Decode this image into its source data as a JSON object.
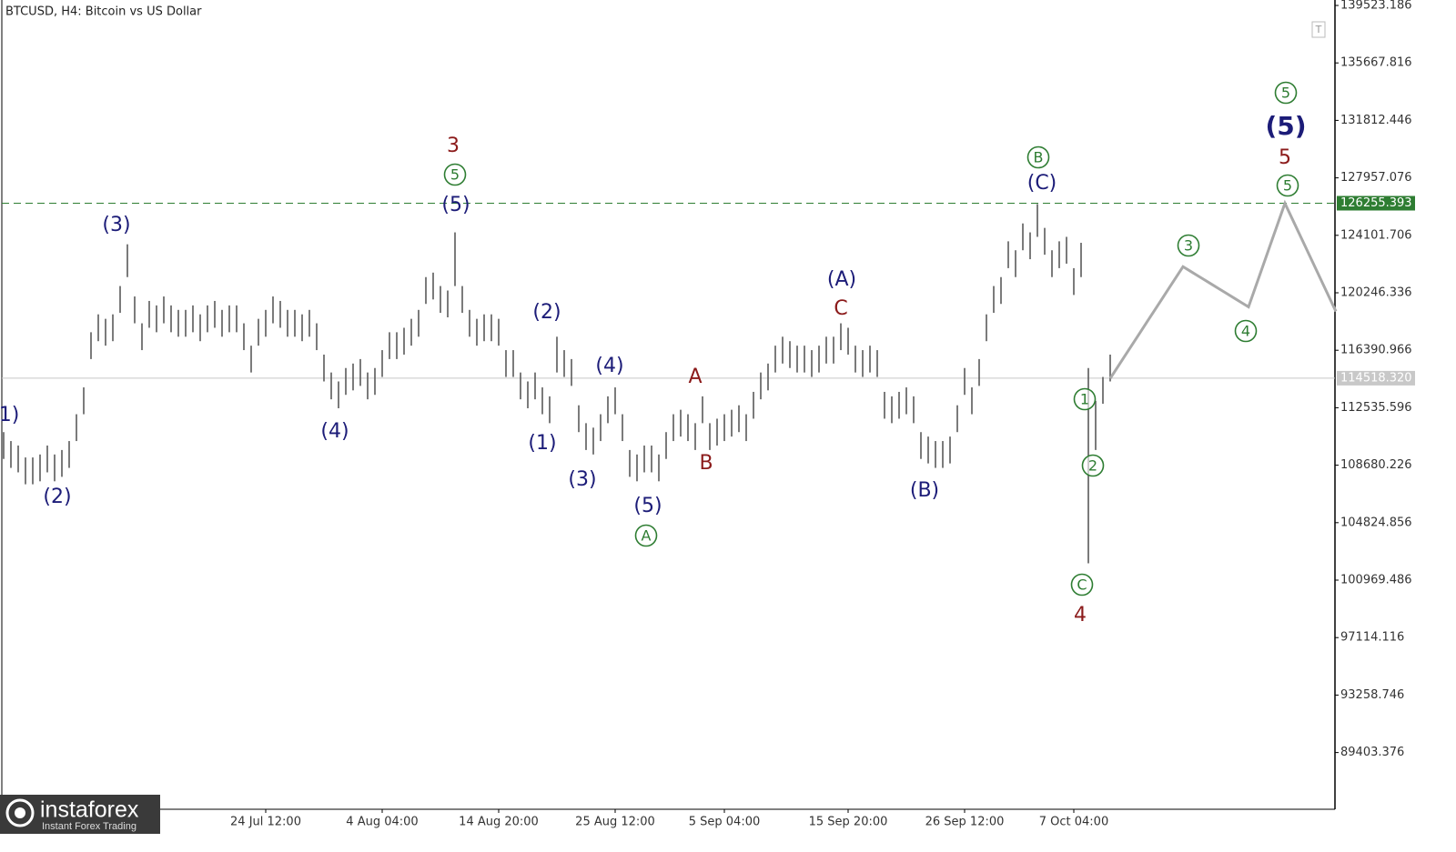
{
  "chart_data": {
    "type": "range_bar",
    "title": "BTCUSD, H4:  Bitcoin vs US Dollar",
    "logo": {
      "name": "instaforex",
      "tagline": "Instant Forex Trading"
    },
    "ylim": [
      85598,
      139889
    ],
    "yticks": [
      139523.186,
      135667.816,
      131812.446,
      127957.076,
      124101.706,
      120246.336,
      116390.966,
      112535.596,
      108680.226,
      104824.856,
      100969.486,
      97114.116,
      93258.746,
      89403.376
    ],
    "grid": false,
    "categories": [
      null,
      null,
      null,
      null,
      null,
      null,
      null,
      null,
      null,
      null,
      null,
      null,
      null,
      null,
      null,
      null,
      null,
      null,
      null,
      null,
      null,
      null,
      null,
      null,
      null,
      null,
      null,
      null,
      null,
      null,
      null,
      null,
      null,
      null,
      null,
      null,
      "24 Jul 12:00",
      null,
      null,
      null,
      null,
      null,
      null,
      null,
      null,
      null,
      null,
      null,
      null,
      null,
      null,
      null,
      "4 Aug 04:00",
      null,
      null,
      null,
      null,
      null,
      null,
      null,
      null,
      null,
      null,
      null,
      null,
      null,
      null,
      null,
      "14 Aug 20:00",
      null,
      null,
      null,
      null,
      null,
      null,
      null,
      null,
      null,
      null,
      null,
      null,
      null,
      null,
      null,
      "25 Aug 12:00",
      null,
      null,
      null,
      null,
      null,
      null,
      null,
      null,
      null,
      null,
      null,
      null,
      null,
      null,
      "5 Sep 04:00",
      null,
      null,
      null,
      null,
      null,
      null,
      null,
      null,
      null,
      null,
      null,
      null,
      null,
      null,
      null,
      null,
      "15 Sep 20:00",
      null,
      null,
      null,
      null,
      null,
      null,
      null,
      null,
      null,
      null,
      null,
      null,
      null,
      null,
      null,
      "26 Sep 12:00",
      null,
      null,
      null,
      null,
      null,
      null,
      null,
      null,
      null,
      null,
      null,
      null,
      null,
      null,
      "7 Oct 04:00",
      null,
      null,
      null,
      null,
      null,
      null,
      null,
      null,
      null,
      null,
      null,
      null,
      null,
      null,
      null,
      null,
      null,
      null,
      null,
      null,
      null,
      null,
      null,
      null,
      null,
      null,
      null,
      null,
      null,
      null,
      null,
      null,
      null,
      null,
      null,
      null
    ],
    "price": {
      "color": "#5a5a5a",
      "high": [
        110900,
        110300,
        110000,
        109200,
        109200,
        109400,
        110000,
        109400,
        109700,
        110300,
        112100,
        113900,
        117600,
        118800,
        118500,
        118800,
        120700,
        123500,
        120000,
        118200,
        119700,
        119400,
        120000,
        119400,
        119100,
        119100,
        119400,
        118800,
        119400,
        119700,
        119100,
        119400,
        119400,
        118200,
        116700,
        118500,
        119100,
        120000,
        119700,
        119100,
        119100,
        118800,
        119100,
        118200,
        116100,
        114900,
        114300,
        115200,
        115500,
        115800,
        114900,
        115200,
        116400,
        117600,
        117600,
        117900,
        118500,
        119100,
        121300,
        121600,
        120700,
        120400,
        124300,
        120700,
        119100,
        118500,
        118800,
        118800,
        118500,
        116400,
        116400,
        114900,
        114300,
        114900,
        113900,
        113300,
        117300,
        116400,
        115800,
        112700,
        111500,
        111200,
        112100,
        113300,
        113900,
        112100,
        109700,
        109400,
        110000,
        110000,
        109400,
        110900,
        112100,
        112400,
        112100,
        111500,
        113300,
        111500,
        111800,
        112100,
        112400,
        112700,
        112100,
        113600,
        114900,
        115500,
        116700,
        117300,
        117000,
        116700,
        116700,
        116400,
        116700,
        117300,
        117300,
        118200,
        117900,
        116700,
        116400,
        116700,
        116400,
        113600,
        113300,
        113600,
        113900,
        113300,
        110900,
        110600,
        110300,
        110300,
        110600,
        112700,
        115200,
        113900,
        115800,
        118800,
        120700,
        121300,
        123700,
        123100,
        124900,
        124300,
        126200,
        124600,
        123100,
        123700,
        124000,
        121900,
        123600,
        115200,
        113000,
        114600,
        116100,
        null,
        null,
        null,
        null,
        null,
        null,
        null,
        null,
        null,
        null,
        null,
        null,
        null,
        null,
        null,
        null,
        null,
        null,
        null,
        null,
        null,
        null,
        null,
        null,
        null,
        null,
        null,
        null,
        null,
        null,
        null
      ],
      "low": [
        109100,
        108500,
        108200,
        107400,
        107400,
        107600,
        108200,
        107600,
        107900,
        108500,
        110300,
        112100,
        115800,
        117000,
        116700,
        117000,
        118900,
        121300,
        118200,
        116400,
        117900,
        117600,
        118200,
        117600,
        117300,
        117300,
        117600,
        117000,
        117600,
        117900,
        117300,
        117600,
        117600,
        116400,
        114900,
        116700,
        117300,
        118200,
        117900,
        117300,
        117300,
        117000,
        117300,
        116400,
        114300,
        113100,
        112500,
        113400,
        113700,
        114000,
        113100,
        113400,
        114600,
        115800,
        115800,
        116100,
        116700,
        117300,
        119500,
        119800,
        118900,
        118600,
        120700,
        118900,
        117300,
        116700,
        117000,
        117000,
        116700,
        114600,
        114600,
        113100,
        112500,
        113100,
        112100,
        111500,
        114900,
        114600,
        114000,
        110900,
        109700,
        109400,
        110300,
        111500,
        112100,
        110300,
        107900,
        107600,
        108200,
        108200,
        107600,
        109100,
        110300,
        110600,
        110300,
        109700,
        111500,
        109700,
        110000,
        110300,
        110600,
        110900,
        110300,
        111800,
        113100,
        113700,
        114900,
        115500,
        115200,
        114900,
        114900,
        114600,
        114900,
        115500,
        115500,
        116400,
        116100,
        114900,
        114600,
        114900,
        114600,
        111800,
        111500,
        111800,
        112100,
        111500,
        109100,
        108800,
        108500,
        108500,
        108800,
        110900,
        113400,
        112100,
        114000,
        117000,
        118900,
        119500,
        121900,
        121300,
        123100,
        122500,
        124000,
        122800,
        121300,
        121900,
        122200,
        120100,
        121300,
        102100,
        109700,
        112800,
        114300,
        null,
        null,
        null,
        null,
        null,
        null,
        null,
        null,
        null,
        null,
        null,
        null,
        null,
        null,
        null,
        null,
        null,
        null,
        null,
        null,
        null,
        null,
        null,
        null,
        null,
        null,
        null,
        null,
        null,
        null,
        null
      ]
    },
    "forecast": {
      "color": "#a9a9a9",
      "values": [
        null,
        null,
        null,
        null,
        null,
        null,
        null,
        null,
        null,
        null,
        null,
        null,
        null,
        null,
        null,
        null,
        null,
        null,
        null,
        null,
        null,
        null,
        null,
        null,
        null,
        null,
        null,
        null,
        null,
        null,
        null,
        null,
        null,
        null,
        null,
        null,
        null,
        null,
        null,
        null,
        null,
        null,
        null,
        null,
        null,
        null,
        null,
        null,
        null,
        null,
        null,
        null,
        null,
        null,
        null,
        null,
        null,
        null,
        null,
        null,
        null,
        null,
        null,
        null,
        null,
        null,
        null,
        null,
        null,
        null,
        null,
        null,
        null,
        null,
        null,
        null,
        null,
        null,
        null,
        null,
        null,
        null,
        null,
        null,
        null,
        null,
        null,
        null,
        null,
        null,
        null,
        null,
        null,
        null,
        null,
        null,
        null,
        null,
        null,
        null,
        null,
        null,
        null,
        null,
        null,
        null,
        null,
        null,
        null,
        null,
        null,
        null,
        null,
        null,
        null,
        null,
        null,
        null,
        null,
        null,
        null,
        null,
        null,
        null,
        null,
        null,
        null,
        null,
        null,
        null,
        null,
        null,
        null,
        null,
        null,
        null,
        null,
        null,
        null,
        null,
        null,
        null,
        null,
        null,
        null,
        null,
        null,
        null,
        null,
        null,
        null,
        null,
        114500,
        115250,
        116000,
        116750,
        117500,
        118250,
        119000,
        119750,
        120500,
        121250,
        122000,
        121700,
        121400,
        121100,
        120800,
        120500,
        120200,
        119900,
        119600,
        119300,
        120690,
        122080,
        123470,
        124860,
        126250,
        125214,
        124179,
        123143,
        122107,
        121071,
        120036,
        119000
      ]
    },
    "levels": [
      {
        "value": 126255.393,
        "color": "#2e7d32",
        "style": "dashed"
      },
      {
        "value": 114518.32,
        "label": "114518.320",
        "color": "#c8c8c8",
        "style": "solid"
      }
    ],
    "annotations": [
      {
        "text": "1)",
        "color": "#1c1c78"
      },
      {
        "text": "(2)",
        "color": "#1c1c78"
      },
      {
        "text": "(3)",
        "color": "#1c1c78"
      },
      {
        "text": "(4)",
        "color": "#1c1c78"
      },
      {
        "text": "3",
        "color": "#8b1a1a"
      },
      {
        "text": "5",
        "color": "#2e7d32",
        "circled": true
      },
      {
        "text": "(5)",
        "color": "#1c1c78"
      },
      {
        "text": "(2)",
        "color": "#1c1c78"
      },
      {
        "text": "(1)",
        "color": "#1c1c78"
      },
      {
        "text": "(3)",
        "color": "#1c1c78"
      },
      {
        "text": "(4)",
        "color": "#1c1c78"
      },
      {
        "text": "(5)",
        "color": "#1c1c78"
      },
      {
        "text": "A",
        "color": "#2e7d32",
        "circled": true
      },
      {
        "text": "A",
        "color": "#8b1a1a"
      },
      {
        "text": "B",
        "color": "#8b1a1a"
      },
      {
        "text": "(A)",
        "color": "#1c1c78"
      },
      {
        "text": "C",
        "color": "#8b1a1a"
      },
      {
        "text": "(B)",
        "color": "#1c1c78"
      },
      {
        "text": "B",
        "color": "#2e7d32",
        "circled": true
      },
      {
        "text": "(C)",
        "color": "#1c1c78"
      },
      {
        "text": "1",
        "color": "#2e7d32",
        "circled": true
      },
      {
        "text": "2",
        "color": "#2e7d32",
        "circled": true
      },
      {
        "text": "C",
        "color": "#2e7d32",
        "circled": true
      },
      {
        "text": "4",
        "color": "#8b1a1a"
      },
      {
        "text": "3",
        "color": "#2e7d32",
        "circled": true
      },
      {
        "text": "4",
        "color": "#2e7d32",
        "circled": true
      },
      {
        "text": "5",
        "color": "#2e7d32",
        "circled": true
      },
      {
        "text": "(5)",
        "color": "#1c1c78",
        "bold": true
      },
      {
        "text": "5",
        "color": "#8b1a1a"
      },
      {
        "text": "5",
        "color": "#2e7d32",
        "circled": true
      }
    ]
  }
}
